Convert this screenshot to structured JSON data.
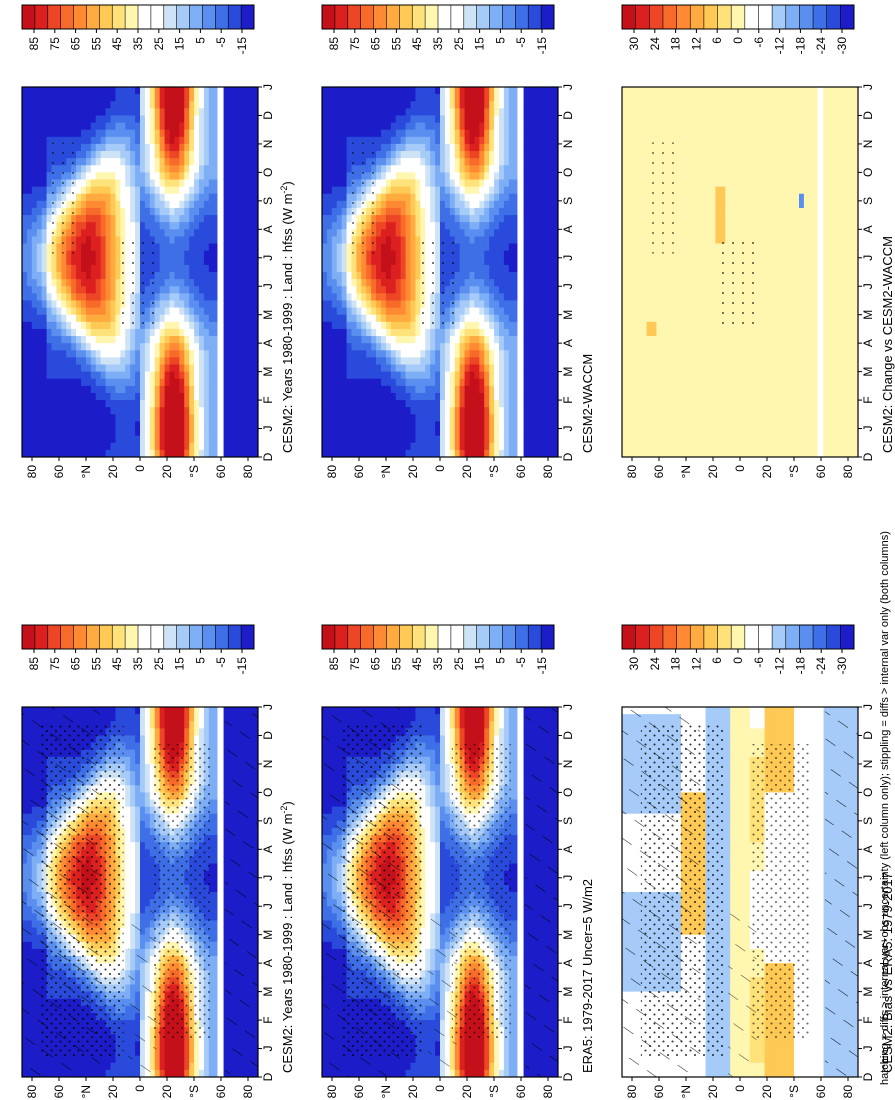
{
  "footnote": "hatching = diffs > internal var+obs uncertainty (left column only); stippling = diffs > internal var only (both columns)",
  "colors": {
    "abs_scale": [
      "#1c1cc8",
      "#2a4adb",
      "#3f6fe6",
      "#5a8ff0",
      "#7eaef5",
      "#a6cbf8",
      "#cfe3f6",
      "#ffffff",
      "#ffffff",
      "#fff6b0",
      "#ffe27a",
      "#ffc955",
      "#ffab3f",
      "#ff8a33",
      "#f86a2a",
      "#ec4626",
      "#dc2020",
      "#c4101a"
    ],
    "diff_scale": [
      "#1c1cc8",
      "#2a4adb",
      "#3f6fe6",
      "#5a8ff0",
      "#7eaef5",
      "#a6cbf8",
      "#ffffff",
      "#ffffff",
      "#fff6b0",
      "#ffe27a",
      "#ffc955",
      "#ffab3f",
      "#ff8a33",
      "#f86a2a",
      "#ec4626",
      "#dc2020",
      "#c4101a"
    ],
    "land_mask": "#ffffff",
    "antarctic_band": "#3434d0"
  },
  "chart_data": [
    {
      "id": "p1",
      "type": "heatmap",
      "field": "abs",
      "title": "CESM2: Years 1980-1999 : Land : hfss (W m",
      "title_sup": "-2",
      "title_tail": ")",
      "x": [
        "D",
        "J",
        "F",
        "M",
        "A",
        "M",
        "J",
        "J",
        "A",
        "S",
        "O",
        "N",
        "D",
        "J"
      ],
      "y_ticks": [
        "80",
        "60",
        "°N",
        "20",
        "0",
        "20",
        "°S",
        "60",
        "80"
      ],
      "hatching": true,
      "stippling": "dense"
    },
    {
      "id": "p2",
      "type": "heatmap",
      "field": "abs",
      "title": "CESM2: Years 1980-1999 : Land : hfss (W m",
      "title_sup": "-2",
      "title_tail": ")",
      "x": [
        "D",
        "J",
        "F",
        "M",
        "A",
        "M",
        "J",
        "J",
        "A",
        "S",
        "O",
        "N",
        "D",
        "J"
      ],
      "y_ticks": [
        "80",
        "60",
        "°N",
        "20",
        "0",
        "20",
        "°S",
        "60",
        "80"
      ],
      "hatching": false,
      "stippling": "sparse"
    },
    {
      "id": "p3",
      "type": "heatmap",
      "field": "abs",
      "title": "ERA5: 1979-2017 Uncer=5 W/m2",
      "x": [
        "D",
        "J",
        "F",
        "M",
        "A",
        "M",
        "J",
        "J",
        "A",
        "S",
        "O",
        "N",
        "D",
        "J"
      ],
      "y_ticks": [
        "80",
        "60",
        "°N",
        "20",
        "0",
        "20",
        "°S",
        "60",
        "80"
      ],
      "hatching": true,
      "stippling": "dense"
    },
    {
      "id": "p4",
      "type": "heatmap",
      "field": "abs",
      "title": "CESM2-WACCM",
      "x": [
        "D",
        "J",
        "F",
        "M",
        "A",
        "M",
        "J",
        "J",
        "A",
        "S",
        "O",
        "N",
        "D",
        "J"
      ],
      "y_ticks": [
        "80",
        "60",
        "°N",
        "20",
        "0",
        "20",
        "°S",
        "60",
        "80"
      ],
      "hatching": false,
      "stippling": "sparse"
    },
    {
      "id": "p5",
      "type": "heatmap",
      "field": "bias",
      "title": "CESM2: Bias vs ERA5: 1979-2017",
      "x": [
        "D",
        "J",
        "F",
        "M",
        "A",
        "M",
        "J",
        "J",
        "A",
        "S",
        "O",
        "N",
        "D",
        "J"
      ],
      "y_ticks": [
        "80",
        "60",
        "°N",
        "20",
        "0",
        "20",
        "°S",
        "60",
        "80"
      ],
      "hatching": true,
      "stippling": "dense"
    },
    {
      "id": "p6",
      "type": "heatmap",
      "field": "change",
      "title": "CESM2: Change vs CESM2-WACCM",
      "x": [
        "D",
        "J",
        "F",
        "M",
        "A",
        "M",
        "J",
        "J",
        "A",
        "S",
        "O",
        "N",
        "D",
        "J"
      ],
      "y_ticks": [
        "80",
        "60",
        "°N",
        "20",
        "0",
        "20",
        "°S",
        "60",
        "80"
      ],
      "hatching": false,
      "stippling": "sparse"
    }
  ],
  "colorbars": {
    "abs": [
      "85",
      "75",
      "65",
      "55",
      "45",
      "35",
      "25",
      "15",
      "5",
      "-5",
      "-15"
    ],
    "diff": [
      "30",
      "24",
      "18",
      "12",
      "6",
      "0",
      "-6",
      "-12",
      "-18",
      "-24",
      "-30"
    ]
  }
}
